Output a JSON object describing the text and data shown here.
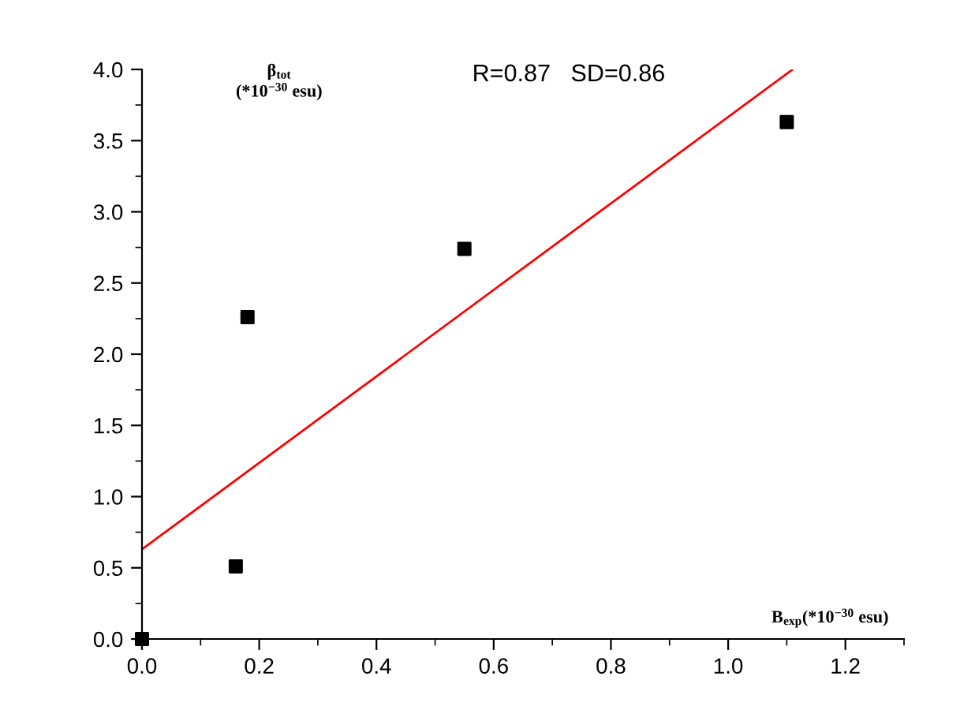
{
  "chart_data": {
    "type": "scatter",
    "xlabel": "B$_{exp}$(*10$^{−30}$ esu)",
    "ylabel": "β$_{tot}$\n(*10$^{−30}$ esu)",
    "annotations": [
      "R=0.87   SD=0.86"
    ],
    "x": [
      0,
      0.16,
      0.18,
      0.55,
      1.1
    ],
    "series": [
      {
        "color": "#000000",
        "marker": "square",
        "values": [
          0,
          0.51,
          2.26,
          2.74,
          3.63
        ]
      },
      {
        "type": "line",
        "color": "#ff0000",
        "marker": "none",
        "line_style": "solid",
        "x": [
          0,
          1.11
        ],
        "values": [
          0.63,
          4.0
        ]
      }
    ],
    "xlim": [
      0,
      1.3
    ],
    "ylim": [
      0,
      4.0
    ],
    "xticks": [
      {
        "value": 0,
        "label": "0.0"
      },
      0.2,
      0.4,
      0.6,
      0.8,
      {
        "value": 1,
        "label": "1.0"
      },
      1.2
    ],
    "yticks": [
      {
        "value": 0,
        "label": "0.0"
      },
      0.5,
      {
        "value": 1,
        "label": "1.0"
      },
      1.5,
      {
        "value": 2,
        "label": "2.0"
      },
      2.5,
      {
        "value": 3,
        "label": "3.0"
      },
      3.5,
      {
        "value": 4,
        "label": "4.0"
      }
    ],
    "grid": false,
    "legend": false
  }
}
